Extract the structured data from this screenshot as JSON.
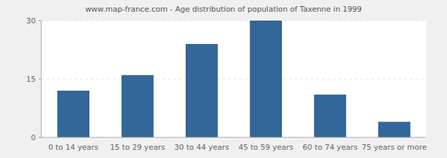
{
  "chart_data": {
    "type": "bar",
    "title": "www.map-france.com - Age distribution of population of Taxenne in 1999",
    "categories": [
      "0 to 14 years",
      "15 to 29 years",
      "30 to 44 years",
      "45 to 59 years",
      "60 to 74 years",
      "75 years or more"
    ],
    "values": [
      12,
      16,
      24,
      30,
      11,
      4
    ],
    "color": "#336699",
    "ylim": [
      0,
      30
    ],
    "yticks": [
      0,
      15,
      30
    ],
    "grid": true
  }
}
